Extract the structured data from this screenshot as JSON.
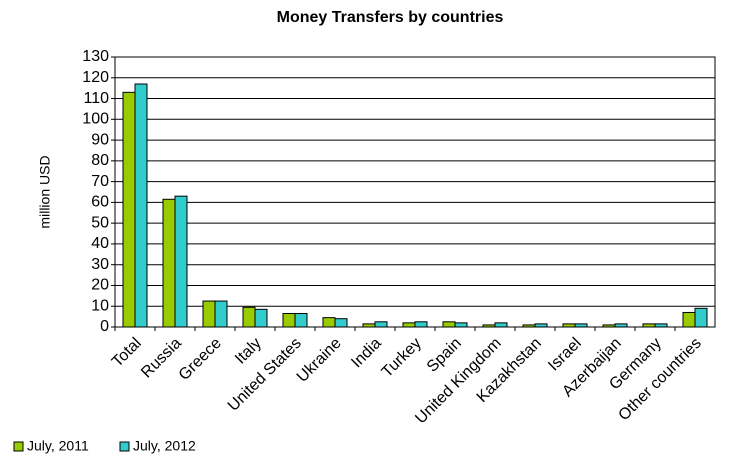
{
  "chart_data": {
    "type": "bar",
    "title": "Money Transfers by countries",
    "y_label": "million USD",
    "categories": [
      "Total",
      "Russia",
      "Greece",
      "Italy",
      "United States",
      "Ukraine",
      "India",
      "Turkey",
      "Spain",
      "United Kingdom",
      "Kazakhstan",
      "Israel",
      "Azerbaijan",
      "Germany",
      "Other countries"
    ],
    "series": [
      {
        "name": "July, 2011",
        "color": "#99cc00",
        "values": [
          113,
          61.5,
          12.5,
          9.5,
          6.5,
          4.5,
          1.5,
          2,
          2.5,
          1,
          1,
          1.5,
          1,
          1.5,
          7
        ]
      },
      {
        "name": "July, 2012",
        "color": "#33cccc",
        "values": [
          117,
          63,
          12.5,
          8.5,
          6.5,
          4,
          2.5,
          2.5,
          2,
          2,
          1.5,
          1.5,
          1.5,
          1.5,
          9
        ]
      }
    ],
    "ylim": [
      0,
      130
    ],
    "yticks": [
      0,
      10,
      20,
      30,
      40,
      50,
      60,
      70,
      80,
      90,
      100,
      110,
      120,
      130
    ],
    "grid": true,
    "legend": "bottom-left"
  }
}
